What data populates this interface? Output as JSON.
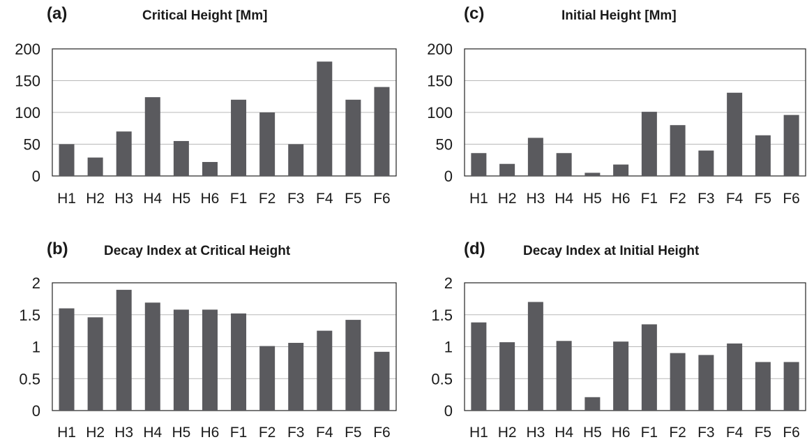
{
  "chart_data": [
    {
      "id": "a",
      "type": "bar",
      "panel_label": "(a)",
      "title": "Critical Height [Mm]",
      "xlabel": "",
      "ylabel": "",
      "categories": [
        "H1",
        "H2",
        "H3",
        "H4",
        "H5",
        "H6",
        "F1",
        "F2",
        "F3",
        "F4",
        "F5",
        "F6"
      ],
      "values": [
        50,
        29,
        70,
        124,
        55,
        22,
        120,
        100,
        50,
        180,
        120,
        140
      ],
      "yticks": [
        "0",
        "50",
        "100",
        "150",
        "200"
      ],
      "ylim": [
        0,
        200
      ],
      "grid": true,
      "bar_color": "#5a5a5e"
    },
    {
      "id": "b",
      "type": "bar",
      "panel_label": "(b)",
      "title": "Decay Index at Critical Height",
      "xlabel": "",
      "ylabel": "",
      "categories": [
        "H1",
        "H2",
        "H3",
        "H4",
        "H5",
        "H6",
        "F1",
        "F2",
        "F3",
        "F4",
        "F5",
        "F6"
      ],
      "values": [
        1.6,
        1.46,
        1.89,
        1.69,
        1.58,
        1.58,
        1.52,
        1.01,
        1.06,
        1.25,
        1.42,
        0.92
      ],
      "yticks": [
        "0",
        "0.5",
        "1",
        "1.5",
        "2"
      ],
      "ylim": [
        0,
        2
      ],
      "grid": true,
      "bar_color": "#5a5a5e"
    },
    {
      "id": "c",
      "type": "bar",
      "panel_label": "(c)",
      "title": "Initial Height [Mm]",
      "xlabel": "",
      "ylabel": "",
      "categories": [
        "H1",
        "H2",
        "H3",
        "H4",
        "H5",
        "H6",
        "F1",
        "F2",
        "F3",
        "F4",
        "F5",
        "F6"
      ],
      "values": [
        36,
        19,
        60,
        36,
        5,
        18,
        101,
        80,
        40,
        131,
        64,
        96
      ],
      "yticks": [
        "0",
        "50",
        "100",
        "150",
        "200"
      ],
      "ylim": [
        0,
        200
      ],
      "grid": true,
      "bar_color": "#5a5a5e"
    },
    {
      "id": "d",
      "type": "bar",
      "panel_label": "(d)",
      "title": "Decay Index at Initial Height",
      "xlabel": "",
      "ylabel": "",
      "categories": [
        "H1",
        "H2",
        "H3",
        "H4",
        "H5",
        "H6",
        "F1",
        "F2",
        "F3",
        "F4",
        "F5",
        "F6"
      ],
      "values": [
        1.38,
        1.07,
        1.7,
        1.09,
        0.21,
        1.08,
        1.35,
        0.9,
        0.87,
        1.05,
        0.76,
        0.76
      ],
      "yticks": [
        "0",
        "0.5",
        "1",
        "1.5",
        "2"
      ],
      "ylim": [
        0,
        2
      ],
      "grid": true,
      "bar_color": "#5a5a5e"
    }
  ]
}
